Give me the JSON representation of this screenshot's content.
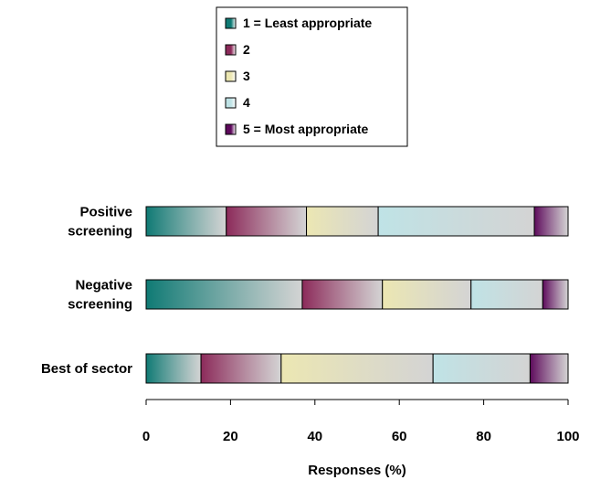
{
  "chart_data": {
    "type": "bar",
    "orientation": "horizontal",
    "stacked": true,
    "title": "",
    "xlabel": "Responses (%)",
    "ylabel": "",
    "xlim": [
      0,
      100
    ],
    "x_ticks": [
      0,
      20,
      40,
      60,
      80,
      100
    ],
    "grid": false,
    "legend_position": "top",
    "categories": [
      [
        "Positive",
        "screening"
      ],
      [
        "Negative",
        "screening"
      ],
      [
        "Best of sector"
      ]
    ],
    "series": [
      {
        "name": "1 = Least appropriate",
        "color": "#0f7a74",
        "values": [
          19,
          37,
          13
        ]
      },
      {
        "name": "2",
        "color": "#8c2a5a",
        "values": [
          19,
          19,
          19
        ]
      },
      {
        "name": "3",
        "color": "#ece7b2",
        "values": [
          17,
          21,
          36
        ]
      },
      {
        "name": "4",
        "color": "#bfe3e6",
        "values": [
          37,
          17,
          23
        ]
      },
      {
        "name": "5 = Most appropriate",
        "color": "#5e0a5c",
        "values": [
          8,
          6,
          9
        ]
      }
    ]
  }
}
